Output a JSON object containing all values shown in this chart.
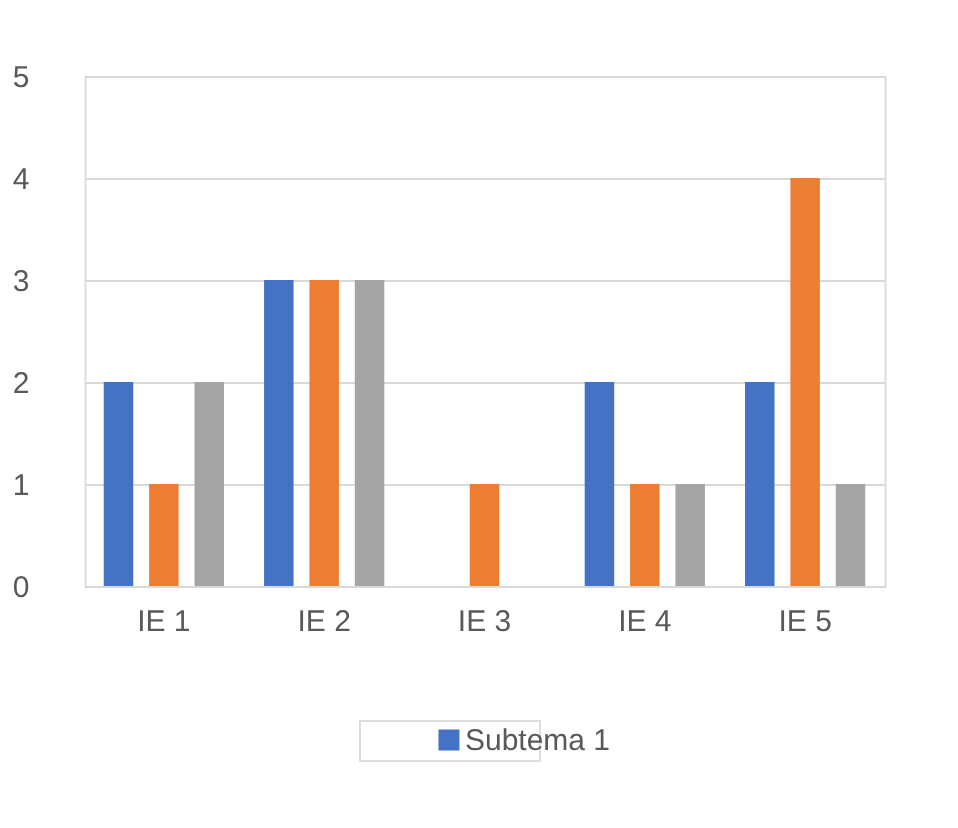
{
  "chart_data": {
    "type": "bar",
    "categories": [
      "IE 1",
      "IE 2",
      "IE 3",
      "IE 4",
      "IE 5"
    ],
    "series": [
      {
        "name": "Subtema 1",
        "color": "#4472c4",
        "values": [
          2,
          3,
          0,
          2,
          2
        ]
      },
      {
        "color": "#ed7d31",
        "values": [
          1,
          3,
          1,
          1,
          4
        ]
      },
      {
        "color": "#a5a5a5",
        "values": [
          2,
          3,
          0,
          1,
          1
        ]
      }
    ],
    "ylim": [
      0,
      5
    ],
    "yticks": [
      0,
      1,
      2,
      3,
      4,
      5
    ],
    "grid": "y",
    "legend": "bottom"
  }
}
